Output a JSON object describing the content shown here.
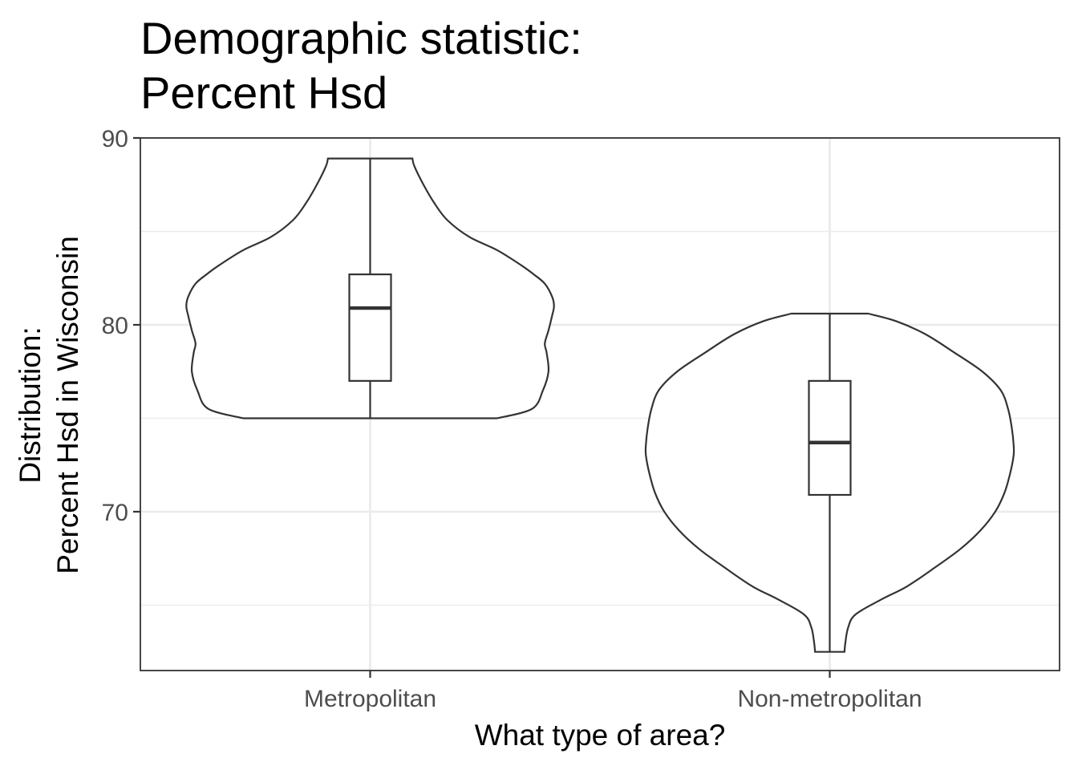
{
  "chart_data": {
    "type": "violin",
    "title_lines": [
      "Demographic statistic:",
      "Percent Hsd"
    ],
    "xlabel": "What type of area?",
    "ylabel_lines": [
      "Distribution:",
      "Percent Hsd in Wisconsin"
    ],
    "ylim": [
      61.5,
      90
    ],
    "yticks": [
      70,
      80,
      90
    ],
    "yticks_minor": [
      65,
      75,
      85
    ],
    "grid": true,
    "categories": [
      "Metropolitan",
      "Non-metropolitan"
    ],
    "series": [
      {
        "category": "Metropolitan",
        "min": 75.0,
        "max": 88.9,
        "box": {
          "q1": 77.0,
          "median": 80.9,
          "q3": 82.7,
          "whisker_low": 75.0,
          "whisker_high": 88.9
        },
        "density_profile": [
          [
            75.0,
            0.69
          ],
          [
            75.5,
            0.88
          ],
          [
            76.5,
            0.94
          ],
          [
            77.5,
            0.97
          ],
          [
            78.5,
            0.96
          ],
          [
            79.0,
            0.95
          ],
          [
            79.7,
            0.97
          ],
          [
            80.5,
            0.99
          ],
          [
            81.0,
            1.0
          ],
          [
            81.5,
            0.99
          ],
          [
            82.2,
            0.95
          ],
          [
            82.7,
            0.89
          ],
          [
            83.2,
            0.82
          ],
          [
            84.0,
            0.69
          ],
          [
            84.7,
            0.54
          ],
          [
            85.6,
            0.42
          ],
          [
            86.5,
            0.35
          ],
          [
            87.5,
            0.29
          ],
          [
            88.5,
            0.24
          ],
          [
            88.9,
            0.23
          ]
        ]
      },
      {
        "category": "Non-metropolitan",
        "min": 62.5,
        "max": 80.6,
        "box": {
          "q1": 70.9,
          "median": 73.7,
          "q3": 77.0,
          "whisker_low": 62.5,
          "whisker_high": 80.6
        },
        "density_profile": [
          [
            62.5,
            0.08
          ],
          [
            63.0,
            0.085
          ],
          [
            63.8,
            0.1
          ],
          [
            64.5,
            0.14
          ],
          [
            65.3,
            0.28
          ],
          [
            66.0,
            0.42
          ],
          [
            67.0,
            0.57
          ],
          [
            68.0,
            0.71
          ],
          [
            69.0,
            0.82
          ],
          [
            70.0,
            0.9
          ],
          [
            71.0,
            0.95
          ],
          [
            72.0,
            0.98
          ],
          [
            73.0,
            1.0
          ],
          [
            73.6,
            1.0
          ],
          [
            74.5,
            0.99
          ],
          [
            75.5,
            0.97
          ],
          [
            76.5,
            0.93
          ],
          [
            77.5,
            0.83
          ],
          [
            78.5,
            0.68
          ],
          [
            79.5,
            0.52
          ],
          [
            80.2,
            0.36
          ],
          [
            80.6,
            0.21
          ]
        ]
      }
    ],
    "colors": {
      "outline": "#333333",
      "grid_major": "#ebebeb",
      "grid_minor": "#ebebeb",
      "panel_border": "#333333",
      "tick_text": "#4d4d4d",
      "title_text": "#000000"
    }
  }
}
